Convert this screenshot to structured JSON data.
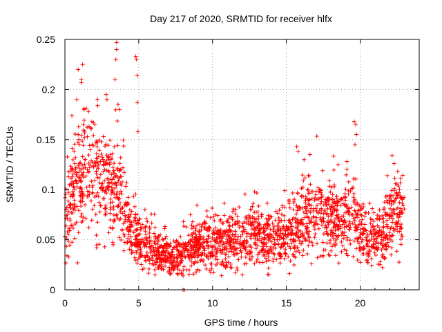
{
  "chart_data": {
    "type": "scatter",
    "title": "Day 217 of 2020, SRMTID for receiver hlfx",
    "xlabel": "GPS time / hours",
    "ylabel": "SRMTID / TECUs",
    "xlim": [
      0,
      24
    ],
    "ylim": [
      0,
      0.25
    ],
    "x_ticks": [
      "0",
      "5",
      "10",
      "15",
      "20"
    ],
    "x_tick_values": [
      0,
      5,
      10,
      15,
      20
    ],
    "y_ticks": [
      "0",
      "0.05",
      "0.1",
      "0.15",
      "0.2",
      "0.25"
    ],
    "y_tick_values": [
      0,
      0.05,
      0.1,
      0.15,
      0.2,
      0.25
    ],
    "grid": true,
    "grid_style": "dotted",
    "legend": "none",
    "marker": "plus",
    "marker_color": "#ff0000",
    "trend_knots": [
      {
        "x": 0.0,
        "y": 0.065
      },
      {
        "x": 0.5,
        "y": 0.09
      },
      {
        "x": 1.0,
        "y": 0.11
      },
      {
        "x": 1.5,
        "y": 0.12
      },
      {
        "x": 2.0,
        "y": 0.115
      },
      {
        "x": 2.5,
        "y": 0.11
      },
      {
        "x": 3.0,
        "y": 0.1
      },
      {
        "x": 3.5,
        "y": 0.1
      },
      {
        "x": 4.0,
        "y": 0.085
      },
      {
        "x": 4.5,
        "y": 0.06
      },
      {
        "x": 5.0,
        "y": 0.05
      },
      {
        "x": 6.0,
        "y": 0.038
      },
      {
        "x": 7.0,
        "y": 0.033
      },
      {
        "x": 8.0,
        "y": 0.035
      },
      {
        "x": 9.0,
        "y": 0.045
      },
      {
        "x": 10.0,
        "y": 0.05
      },
      {
        "x": 11.0,
        "y": 0.048
      },
      {
        "x": 12.0,
        "y": 0.052
      },
      {
        "x": 13.0,
        "y": 0.055
      },
      {
        "x": 14.0,
        "y": 0.05
      },
      {
        "x": 15.0,
        "y": 0.052
      },
      {
        "x": 15.5,
        "y": 0.06
      },
      {
        "x": 16.0,
        "y": 0.07
      },
      {
        "x": 16.5,
        "y": 0.075
      },
      {
        "x": 17.0,
        "y": 0.075
      },
      {
        "x": 18.0,
        "y": 0.07
      },
      {
        "x": 19.0,
        "y": 0.07
      },
      {
        "x": 19.5,
        "y": 0.075
      },
      {
        "x": 20.0,
        "y": 0.065
      },
      {
        "x": 20.5,
        "y": 0.05
      },
      {
        "x": 21.0,
        "y": 0.05
      },
      {
        "x": 21.5,
        "y": 0.055
      },
      {
        "x": 22.0,
        "y": 0.07
      },
      {
        "x": 22.5,
        "y": 0.075
      },
      {
        "x": 23.0,
        "y": 0.07
      }
    ],
    "peak_points": [
      {
        "x": 0.9,
        "y": 0.22
      },
      {
        "x": 1.2,
        "y": 0.225
      },
      {
        "x": 1.1,
        "y": 0.21
      },
      {
        "x": 0.8,
        "y": 0.19
      },
      {
        "x": 1.3,
        "y": 0.18
      },
      {
        "x": 2.8,
        "y": 0.195
      },
      {
        "x": 2.85,
        "y": 0.19
      },
      {
        "x": 3.5,
        "y": 0.247
      },
      {
        "x": 3.5,
        "y": 0.24
      },
      {
        "x": 3.45,
        "y": 0.23
      },
      {
        "x": 3.4,
        "y": 0.21
      },
      {
        "x": 3.6,
        "y": 0.185
      },
      {
        "x": 3.7,
        "y": 0.18
      },
      {
        "x": 4.8,
        "y": 0.233
      },
      {
        "x": 4.85,
        "y": 0.23
      },
      {
        "x": 4.9,
        "y": 0.214
      },
      {
        "x": 4.9,
        "y": 0.187
      },
      {
        "x": 4.95,
        "y": 0.158
      },
      {
        "x": 15.7,
        "y": 0.143
      },
      {
        "x": 15.8,
        "y": 0.138
      },
      {
        "x": 16.2,
        "y": 0.13
      },
      {
        "x": 16.6,
        "y": 0.135
      },
      {
        "x": 18.5,
        "y": 0.125
      },
      {
        "x": 19.1,
        "y": 0.128
      },
      {
        "x": 19.6,
        "y": 0.168
      },
      {
        "x": 19.7,
        "y": 0.165
      },
      {
        "x": 19.75,
        "y": 0.155
      },
      {
        "x": 19.65,
        "y": 0.145
      },
      {
        "x": 22.3,
        "y": 0.126
      },
      {
        "x": 8.0,
        "y": 0.0
      },
      {
        "x": 8.1,
        "y": 0.0
      },
      {
        "x": 6.1,
        "y": 0.015
      }
    ],
    "point_count": 2400,
    "scatter_note": "Dense scatter of roughly 2400 points; per-point values approximated by trend_knots with spread"
  }
}
